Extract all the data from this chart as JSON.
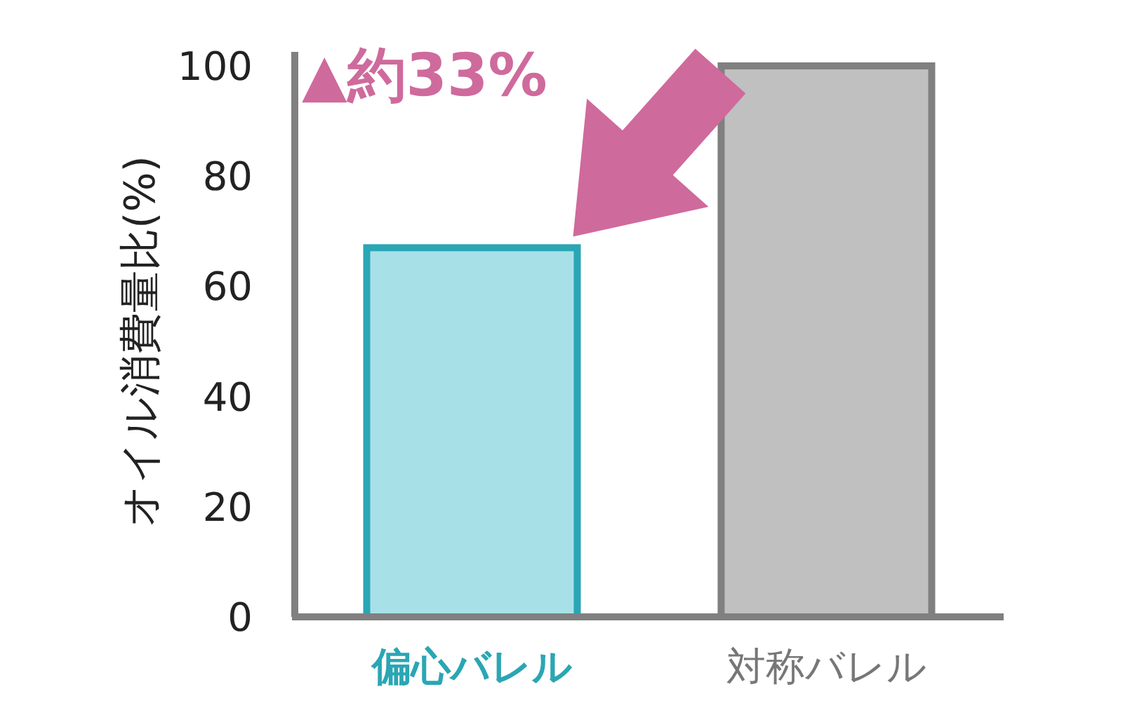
{
  "chart_data": {
    "type": "bar",
    "ylabel": "オイル消費量比(%)",
    "categories": [
      "偏心バレル",
      "対称バレル"
    ],
    "values": [
      67,
      100
    ],
    "colors": [
      "#a8e0e8",
      "#c0c0c0"
    ],
    "ylim": [
      0,
      100
    ],
    "yticks": [
      0,
      20,
      40,
      60,
      80,
      100
    ],
    "annotations": [
      {
        "text": "▲約33%",
        "x": "偏心バレル",
        "y": 67
      }
    ]
  }
}
